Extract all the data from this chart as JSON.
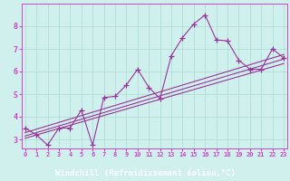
{
  "title": "",
  "xlabel": "Windchill (Refroidissement éolien,°C)",
  "ylabel": "",
  "bg_color": "#d0f0ee",
  "label_bg_color": "#9966bb",
  "label_text_color": "#cc44cc",
  "line_color": "#993399",
  "grid_color": "#b0ddd8",
  "axis_label_color": "#cc44cc",
  "x_ticks": [
    0,
    1,
    2,
    3,
    4,
    5,
    6,
    7,
    8,
    9,
    10,
    11,
    12,
    13,
    14,
    15,
    16,
    17,
    18,
    19,
    20,
    21,
    22,
    23
  ],
  "y_ticks": [
    3,
    4,
    5,
    6,
    7,
    8
  ],
  "xlim": [
    -0.3,
    23.3
  ],
  "ylim": [
    2.6,
    9.0
  ],
  "line1_x": [
    0,
    1,
    2,
    3,
    4,
    5,
    6,
    7,
    8,
    9,
    10,
    11,
    12,
    13,
    14,
    15,
    16,
    17,
    18,
    19,
    20,
    21,
    22,
    23
  ],
  "line1_y": [
    3.5,
    3.2,
    2.75,
    3.5,
    3.5,
    4.3,
    2.75,
    4.85,
    4.9,
    5.4,
    6.1,
    5.3,
    4.8,
    6.7,
    7.5,
    8.1,
    8.5,
    7.4,
    7.35,
    6.5,
    6.1,
    6.1,
    7.0,
    6.6
  ],
  "line2_x": [
    0,
    23
  ],
  "line2_y": [
    3.15,
    6.55
  ],
  "line3_x": [
    0,
    23
  ],
  "line3_y": [
    3.05,
    6.35
  ],
  "line4_x": [
    0,
    23
  ],
  "line4_y": [
    3.3,
    6.75
  ],
  "marker": "+",
  "markersize": 4,
  "linewidth": 0.8,
  "xlabel_fontsize": 6.5,
  "ytick_fontsize": 6,
  "xtick_fontsize": 5
}
